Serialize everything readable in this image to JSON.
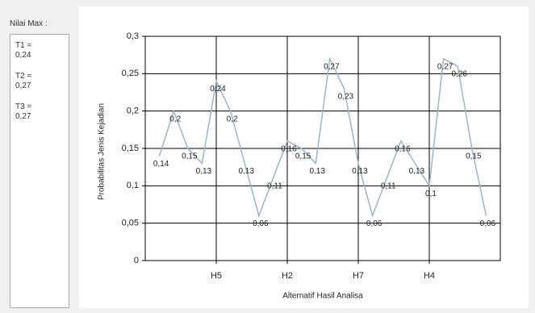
{
  "panel": {
    "label": "Nilai Max :",
    "items": [
      [
        "T1 =",
        "0,24"
      ],
      [
        "T2 =",
        "0,27"
      ],
      [
        "T3 =",
        "0,27"
      ]
    ]
  },
  "chart_data": {
    "type": "line",
    "x_label": "Alternatif Hasil Analisa",
    "y_label": "Probabilitas Jenis Kejadian",
    "categories": [
      null,
      null,
      null,
      null,
      "H5",
      null,
      null,
      null,
      null,
      "H2",
      null,
      null,
      null,
      null,
      "H7",
      null,
      null,
      null,
      null,
      "H4",
      null,
      null,
      null,
      null
    ],
    "values": [
      0.14,
      0.2,
      0.15,
      0.13,
      0.24,
      0.2,
      0.13,
      0.06,
      0.11,
      0.16,
      0.15,
      0.13,
      0.27,
      0.23,
      0.13,
      0.06,
      0.11,
      0.16,
      0.13,
      0.1,
      0.27,
      0.26,
      0.15,
      0.06
    ],
    "value_labels": [
      "0,14",
      "0,2",
      "0,15",
      "0,13",
      "0,24",
      "0,2",
      "0,13",
      "0,06",
      "0,11",
      "0,16",
      "0,15",
      "0,13",
      "0,27",
      "0,23",
      "0,13",
      "0,06",
      "0,11",
      "0,16",
      "0,13",
      "0,1",
      "0,27",
      "0,26",
      "0,15",
      "0,06"
    ],
    "color": "#9fb4c4",
    "ylim": [
      0,
      0.3
    ],
    "yticks": [
      0,
      {
        "value": 0.05,
        "label": "0,05"
      },
      {
        "value": 0.1,
        "label": "0,1"
      },
      {
        "value": 0.15,
        "label": "0,15"
      },
      {
        "value": 0.2,
        "label": "0,2"
      },
      {
        "value": 0.25,
        "label": "0,25"
      },
      {
        "value": 0.3,
        "label": "0,3"
      }
    ],
    "grid": true
  }
}
